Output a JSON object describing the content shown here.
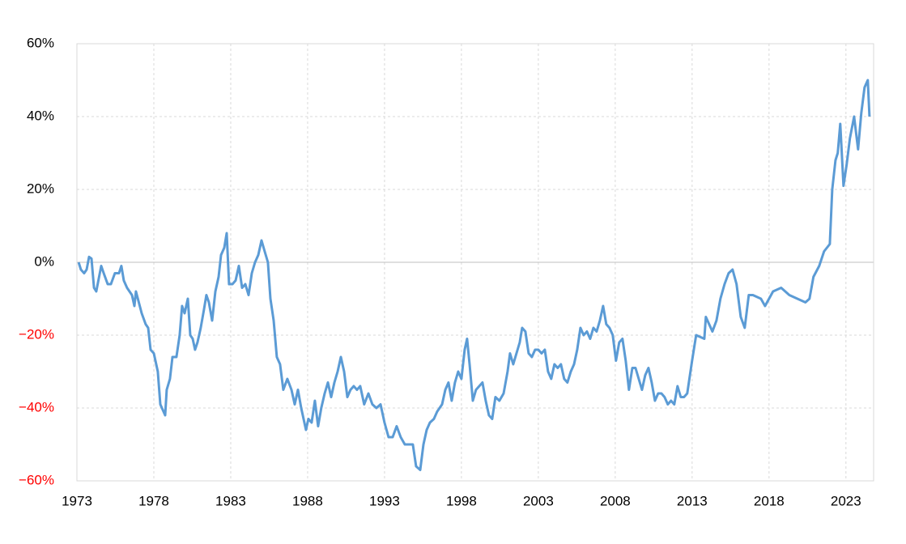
{
  "chart_data": {
    "type": "line",
    "x": [
      1973.11,
      1973.26,
      1973.47,
      1973.63,
      1973.79,
      1973.95,
      1974.11,
      1974.26,
      1974.58,
      1974.74,
      1975.0,
      1975.21,
      1975.47,
      1975.74,
      1975.89,
      1976.05,
      1976.26,
      1976.58,
      1976.74,
      1976.84,
      1977.21,
      1977.47,
      1977.63,
      1977.79,
      1978.0,
      1978.26,
      1978.42,
      1978.74,
      1978.84,
      1979.05,
      1979.21,
      1979.47,
      1979.68,
      1979.84,
      1980.0,
      1980.21,
      1980.37,
      1980.53,
      1980.68,
      1980.84,
      1981.05,
      1981.26,
      1981.42,
      1981.58,
      1981.79,
      1982.0,
      1982.21,
      1982.37,
      1982.58,
      1982.74,
      1982.89,
      1983.11,
      1983.32,
      1983.53,
      1983.74,
      1983.95,
      1984.16,
      1984.37,
      1984.58,
      1984.79,
      1985.0,
      1985.21,
      1985.42,
      1985.58,
      1985.79,
      1986.0,
      1986.21,
      1986.42,
      1986.68,
      1986.95,
      1987.16,
      1987.37,
      1987.58,
      1987.89,
      1988.05,
      1988.26,
      1988.47,
      1988.68,
      1988.89,
      1989.11,
      1989.32,
      1989.53,
      1989.74,
      1989.95,
      1990.16,
      1990.37,
      1990.58,
      1990.79,
      1991.0,
      1991.21,
      1991.42,
      1991.68,
      1991.95,
      1992.21,
      1992.47,
      1992.74,
      1993.0,
      1993.26,
      1993.53,
      1993.79,
      1994.05,
      1994.32,
      1994.58,
      1994.84,
      1995.05,
      1995.32,
      1995.53,
      1995.74,
      1995.95,
      1996.21,
      1996.42,
      1996.74,
      1996.95,
      1997.16,
      1997.37,
      1997.58,
      1997.79,
      1998.0,
      1998.21,
      1998.37,
      1998.53,
      1998.74,
      1998.95,
      1999.16,
      1999.37,
      1999.58,
      1999.79,
      2000.0,
      2000.21,
      2000.47,
      2000.74,
      2001.0,
      2001.16,
      2001.37,
      2001.58,
      2001.79,
      2001.95,
      2002.16,
      2002.37,
      2002.58,
      2002.79,
      2003.0,
      2003.21,
      2003.42,
      2003.63,
      2003.84,
      2004.05,
      2004.26,
      2004.47,
      2004.68,
      2004.89,
      2005.11,
      2005.32,
      2005.53,
      2005.74,
      2005.95,
      2006.16,
      2006.37,
      2006.58,
      2006.79,
      2007.0,
      2007.21,
      2007.42,
      2007.63,
      2007.84,
      2008.05,
      2008.26,
      2008.47,
      2008.68,
      2008.89,
      2009.11,
      2009.32,
      2009.53,
      2009.74,
      2009.95,
      2010.16,
      2010.37,
      2010.58,
      2010.79,
      2011.0,
      2011.21,
      2011.42,
      2011.63,
      2011.84,
      2012.05,
      2012.26,
      2012.47,
      2012.68,
      2013.0,
      2013.26,
      2013.79,
      2013.89,
      2014.32,
      2014.58,
      2014.84,
      2015.11,
      2015.37,
      2015.63,
      2015.89,
      2016.16,
      2016.42,
      2016.68,
      2016.95,
      2017.47,
      2017.74,
      2018.26,
      2018.79,
      2019.32,
      2019.84,
      2020.37,
      2020.63,
      2020.89,
      2021.26,
      2021.58,
      2021.95,
      2022.11,
      2022.32,
      2022.47,
      2022.63,
      2022.84,
      2023.05,
      2023.26,
      2023.53,
      2023.79,
      2024.0,
      2024.21,
      2024.42,
      2024.53
    ],
    "values": [
      0,
      -2,
      -3,
      -2,
      1.5,
      1,
      -7,
      -8,
      -1,
      -3,
      -6,
      -6,
      -3,
      -3,
      -1,
      -5,
      -7,
      -9,
      -12,
      -8,
      -14,
      -17,
      -18,
      -24,
      -25,
      -30,
      -39,
      -42,
      -35,
      -32,
      -26,
      -26,
      -20,
      -12,
      -14,
      -10,
      -20,
      -21,
      -24,
      -22,
      -18,
      -13,
      -9,
      -11,
      -16,
      -8,
      -4,
      2,
      4,
      8,
      -6,
      -6,
      -5,
      -1,
      -7,
      -6,
      -9,
      -3,
      0,
      2,
      6,
      3,
      0,
      -10,
      -16,
      -26,
      -28,
      -35,
      -32,
      -35,
      -39,
      -35,
      -40,
      -46,
      -43,
      -44,
      -38,
      -45,
      -40,
      -36,
      -33,
      -37,
      -33,
      -30,
      -26,
      -30,
      -37,
      -35,
      -34,
      -35,
      -34,
      -39,
      -36,
      -39,
      -40,
      -39,
      -44,
      -48,
      -48,
      -45,
      -48,
      -50,
      -50,
      -50,
      -56,
      -57,
      -50,
      -46,
      -44,
      -43,
      -41,
      -39,
      -35,
      -33,
      -38,
      -33,
      -30,
      -32,
      -24,
      -21,
      -28,
      -38,
      -35,
      -34,
      -33,
      -38,
      -42,
      -43,
      -37,
      -38,
      -36,
      -30,
      -25,
      -28,
      -25,
      -22,
      -18,
      -19,
      -25,
      -26,
      -24,
      -24,
      -25,
      -24,
      -30,
      -32,
      -28,
      -29,
      -28,
      -32,
      -33,
      -30,
      -28,
      -24,
      -18,
      -20,
      -19,
      -21,
      -18,
      -19,
      -16,
      -12,
      -17,
      -18,
      -20,
      -27,
      -22,
      -21,
      -27,
      -35,
      -29,
      -29,
      -32,
      -35,
      -31,
      -29,
      -33,
      -38,
      -36,
      -36,
      -37,
      -39,
      -38,
      -39,
      -34,
      -37,
      -37,
      -36,
      -27,
      -20,
      -21,
      -15,
      -19,
      -16,
      -10,
      -6,
      -3,
      -2,
      -6,
      -15,
      -18,
      -9,
      -9,
      -10,
      -12,
      -8,
      -7,
      -9,
      -10,
      -11,
      -10,
      -4,
      -1,
      3,
      5,
      20,
      28,
      30,
      38,
      21,
      27,
      34,
      40,
      31,
      41,
      48,
      50,
      40
    ],
    "color": "#5b9bd5",
    "xlim": [
      1973,
      2024.8
    ],
    "xticks": [
      1973,
      1978,
      1983,
      1988,
      1993,
      1998,
      2003,
      2008,
      2013,
      2018,
      2023
    ],
    "ylim": [
      -60,
      60
    ],
    "yticks": [
      {
        "value": -60,
        "label": "−60%"
      },
      {
        "value": -40,
        "label": "−40%"
      },
      {
        "value": -20,
        "label": "−20%"
      },
      {
        "value": 0,
        "label": "0%"
      },
      {
        "value": 20,
        "label": "20%"
      },
      {
        "value": 40,
        "label": "40%"
      },
      {
        "value": 60,
        "label": "60%"
      }
    ],
    "negative_tick_color": "#ff0000",
    "grid": true
  }
}
